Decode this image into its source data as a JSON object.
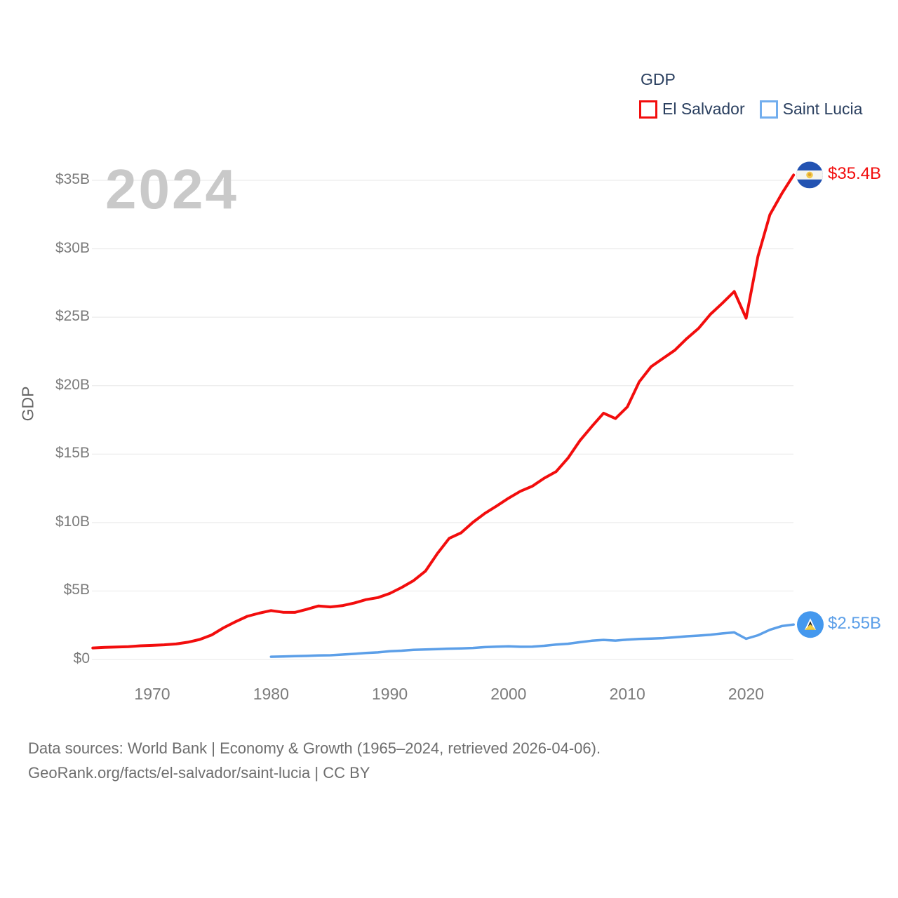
{
  "legend": {
    "title": "GDP",
    "items": [
      {
        "label": "El Salvador",
        "color": "#f20d0d"
      },
      {
        "label": "Saint Lucia",
        "color": "#72aeee"
      }
    ]
  },
  "chart_data": {
    "type": "line",
    "title": "GDP",
    "watermark": "2024",
    "xlabel": "",
    "ylabel": "GDP",
    "xlim": [
      1965,
      2024
    ],
    "ylim": [
      0,
      35.4
    ],
    "grid": true,
    "legend_position": "top-right",
    "x_ticks": [
      {
        "value": 1970,
        "label": "1970"
      },
      {
        "value": 1980,
        "label": "1980"
      },
      {
        "value": 1990,
        "label": "1990"
      },
      {
        "value": 2000,
        "label": "2000"
      },
      {
        "value": 2010,
        "label": "2010"
      },
      {
        "value": 2020,
        "label": "2020"
      }
    ],
    "y_ticks": [
      {
        "value": 0,
        "label": "$0"
      },
      {
        "value": 5,
        "label": "$5B"
      },
      {
        "value": 10,
        "label": "$10B"
      },
      {
        "value": 15,
        "label": "$15B"
      },
      {
        "value": 20,
        "label": "$20B"
      },
      {
        "value": 25,
        "label": "$25B"
      },
      {
        "value": 30,
        "label": "$30B"
      },
      {
        "value": 35,
        "label": "$35B"
      }
    ],
    "series": [
      {
        "name": "El Salvador",
        "color": "#f20d0d",
        "flag": "el-salvador",
        "end_label": "$35.4B",
        "unit": "billion USD",
        "years": [
          1965,
          1966,
          1967,
          1968,
          1969,
          1970,
          1971,
          1972,
          1973,
          1974,
          1975,
          1976,
          1977,
          1978,
          1979,
          1980,
          1981,
          1982,
          1983,
          1984,
          1985,
          1986,
          1987,
          1988,
          1989,
          1990,
          1991,
          1992,
          1993,
          1994,
          1995,
          1996,
          1997,
          1998,
          1999,
          2000,
          2001,
          2002,
          2003,
          2004,
          2005,
          2006,
          2007,
          2008,
          2009,
          2010,
          2011,
          2012,
          2013,
          2014,
          2015,
          2016,
          2017,
          2018,
          2019,
          2020,
          2021,
          2022,
          2023,
          2024
        ],
        "values": [
          0.84,
          0.88,
          0.91,
          0.94,
          1.0,
          1.03,
          1.07,
          1.13,
          1.26,
          1.46,
          1.79,
          2.31,
          2.75,
          3.15,
          3.38,
          3.57,
          3.45,
          3.44,
          3.66,
          3.91,
          3.84,
          3.93,
          4.12,
          4.37,
          4.52,
          4.82,
          5.26,
          5.76,
          6.45,
          7.73,
          8.85,
          9.25,
          10.02,
          10.67,
          11.21,
          11.78,
          12.29,
          12.66,
          13.24,
          13.72,
          14.7,
          15.98,
          17.01,
          17.99,
          17.6,
          18.45,
          20.28,
          21.39,
          21.99,
          22.59,
          23.44,
          24.19,
          25.22,
          26.02,
          26.88,
          24.93,
          29.45,
          32.49,
          34.02,
          35.39
        ]
      },
      {
        "name": "Saint Lucia",
        "color": "#5c9fe8",
        "flag": "saint-lucia",
        "end_label": "$2.55B",
        "unit": "billion USD",
        "years": [
          1980,
          1981,
          1982,
          1983,
          1984,
          1985,
          1986,
          1987,
          1988,
          1989,
          1990,
          1991,
          1992,
          1993,
          1994,
          1995,
          1996,
          1997,
          1998,
          1999,
          2000,
          2001,
          2002,
          2003,
          2004,
          2005,
          2006,
          2007,
          2008,
          2009,
          2010,
          2011,
          2012,
          2013,
          2014,
          2015,
          2016,
          2017,
          2018,
          2019,
          2020,
          2021,
          2022,
          2023,
          2024
        ],
        "values": [
          0.2,
          0.22,
          0.24,
          0.26,
          0.29,
          0.31,
          0.36,
          0.41,
          0.47,
          0.52,
          0.6,
          0.64,
          0.7,
          0.73,
          0.76,
          0.79,
          0.81,
          0.84,
          0.9,
          0.94,
          0.96,
          0.93,
          0.94,
          1.0,
          1.09,
          1.15,
          1.26,
          1.37,
          1.43,
          1.38,
          1.45,
          1.5,
          1.52,
          1.56,
          1.62,
          1.69,
          1.74,
          1.81,
          1.9,
          1.98,
          1.51,
          1.77,
          2.17,
          2.44,
          2.55
        ]
      }
    ],
    "colors": {
      "grid": "#ececec",
      "tick_text": "#7b7b7b",
      "legend_text": "#2a3f5f",
      "watermark": "#c9c9c9",
      "el_salvador_flag_blue": "#2353b2",
      "saint_lucia_flag_blue": "#4498ee"
    }
  },
  "footer": {
    "line1": "Data sources: World Bank | Economy & Growth (1965–2024, retrieved 2026-04-06).",
    "line2": "GeoRank.org/facts/el-salvador/saint-lucia | CC BY"
  }
}
